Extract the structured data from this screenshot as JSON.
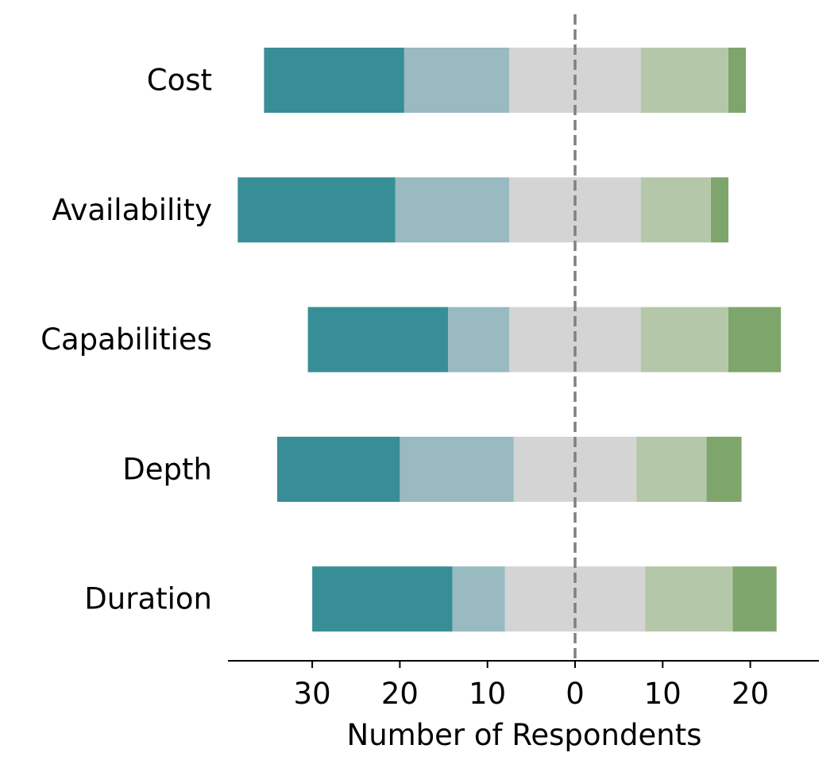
{
  "chart_data": {
    "type": "bar",
    "orientation": "horizontal",
    "style": "diverging-stacked",
    "categories": [
      "Cost",
      "Availability",
      "Capabilities",
      "Depth",
      "Duration"
    ],
    "segment_colors": [
      "#388e96",
      "#98bac0",
      "#d4d4d4",
      "#b4c8a9",
      "#7ea66c"
    ],
    "segments": [
      {
        "values": [
          16,
          18,
          16,
          14,
          16
        ]
      },
      {
        "values": [
          12,
          13,
          7,
          13,
          6
        ]
      },
      {
        "values": [
          15,
          15,
          15,
          14,
          16
        ]
      },
      {
        "values": [
          10,
          8,
          10,
          8,
          10
        ]
      },
      {
        "values": [
          2,
          2,
          6,
          4,
          5
        ]
      }
    ],
    "xlabel": "Number of Respondents",
    "xlim": [
      -39,
      28
    ],
    "xticks": [
      -30,
      -20,
      -10,
      0,
      10,
      20
    ],
    "xtick_labels": [
      "30",
      "20",
      "10",
      "0",
      "10",
      "20"
    ],
    "ylabel": "",
    "center_line": {
      "x": 0,
      "style": "dashed",
      "color": "#808080"
    },
    "grid": false,
    "legend": "none"
  }
}
